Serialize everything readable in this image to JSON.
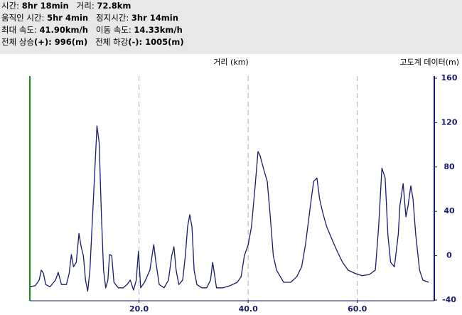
{
  "header": {
    "lines": [
      [
        {
          "label": "시간: ",
          "value": "8hr 18min"
        },
        {
          "label": "거리: ",
          "value": "72.8km"
        }
      ],
      [
        {
          "label": "움직인 시간: ",
          "value": "5hr 4min"
        },
        {
          "label": "정지시간: ",
          "value": "3hr 14min"
        }
      ],
      [
        {
          "label": "최대 속도: ",
          "value": "41.90km/h"
        },
        {
          "label": "이동 속도: ",
          "value": "14.33km/h"
        }
      ],
      [
        {
          "label": "전체 상승",
          "value": "(+): 996(m)"
        },
        {
          "label": "전체 하강",
          "value": "(-): 1005(m)"
        }
      ]
    ]
  },
  "chart_data": {
    "type": "line",
    "xlabel": "거리 (km)",
    "ylabel": "고도계 데이터(m)",
    "color": "#1a1a6e",
    "xgrid": true,
    "xlim": [
      0,
      74.1
    ],
    "ylim": [
      -40,
      160
    ],
    "xticks": [
      {
        "value": 20,
        "label": "20.0"
      },
      {
        "value": 40,
        "label": "40.0"
      },
      {
        "value": 60,
        "label": "60.0"
      }
    ],
    "yticks": [
      160,
      120,
      80,
      40,
      0,
      -40
    ],
    "x": [
      0,
      1.0,
      1.7,
      2.1,
      2.5,
      2.9,
      3.7,
      4.7,
      5.2,
      5.8,
      6.7,
      7.2,
      7.6,
      8.0,
      8.5,
      9.0,
      9.4,
      9.8,
      10.2,
      10.6,
      11.0,
      11.4,
      11.9,
      12.3,
      12.7,
      13.1,
      13.5,
      13.9,
      14.3,
      14.6,
      15.0,
      15.4,
      16.2,
      17.1,
      17.8,
      18.4,
      19.0,
      19.5,
      19.9,
      20.3,
      21.0,
      22.0,
      22.7,
      23.1,
      23.7,
      24.6,
      25.4,
      26.0,
      26.4,
      26.8,
      27.3,
      28.0,
      28.5,
      28.9,
      29.3,
      29.7,
      30.1,
      30.6,
      31.5,
      32.4,
      33.1,
      33.5,
      33.9,
      34.2,
      35.4,
      36.7,
      38.0,
      38.7,
      39.3,
      40.0,
      40.6,
      41.3,
      41.8,
      42.2,
      42.9,
      43.5,
      44.0,
      44.6,
      45.2,
      45.9,
      46.5,
      47.8,
      48.9,
      49.8,
      50.5,
      51.4,
      52.0,
      52.6,
      53.1,
      53.7,
      54.4,
      55.5,
      56.4,
      57.3,
      58.3,
      59.6,
      60.9,
      62.2,
      63.3,
      63.9,
      64.5,
      65.1,
      65.6,
      66.1,
      66.8,
      67.5,
      67.8,
      68.4,
      68.9,
      69.3,
      69.8,
      70.2,
      70.7,
      71.4,
      72.0,
      73.1
    ],
    "values": [
      -28,
      -27,
      -22,
      -13,
      -16,
      -26,
      -28,
      -22,
      -15,
      -26,
      -26,
      -16,
      1,
      -10,
      -6,
      20,
      8,
      0,
      -22,
      -32,
      -13,
      26,
      77,
      117,
      102,
      38,
      -13,
      -29,
      -22,
      1,
      0,
      -24,
      -29,
      -29,
      -26,
      -22,
      -31,
      -22,
      4,
      -29,
      -24,
      -13,
      10,
      -6,
      -26,
      -29,
      -22,
      0,
      8,
      -13,
      -26,
      -22,
      0,
      26,
      37,
      26,
      -13,
      -26,
      -29,
      -29,
      -22,
      -6,
      -19,
      -29,
      -29,
      -27,
      -24,
      -19,
      0,
      10,
      26,
      64,
      94,
      90,
      77,
      67,
      38,
      0,
      -13,
      -19,
      -24,
      -24,
      -19,
      -10,
      10,
      45,
      67,
      70,
      51,
      38,
      26,
      13,
      3,
      -6,
      -13,
      -16,
      -18,
      -17,
      -13,
      26,
      79,
      70,
      19,
      -6,
      -10,
      19,
      45,
      65,
      35,
      45,
      63,
      51,
      19,
      -13,
      -22,
      -24
    ]
  }
}
